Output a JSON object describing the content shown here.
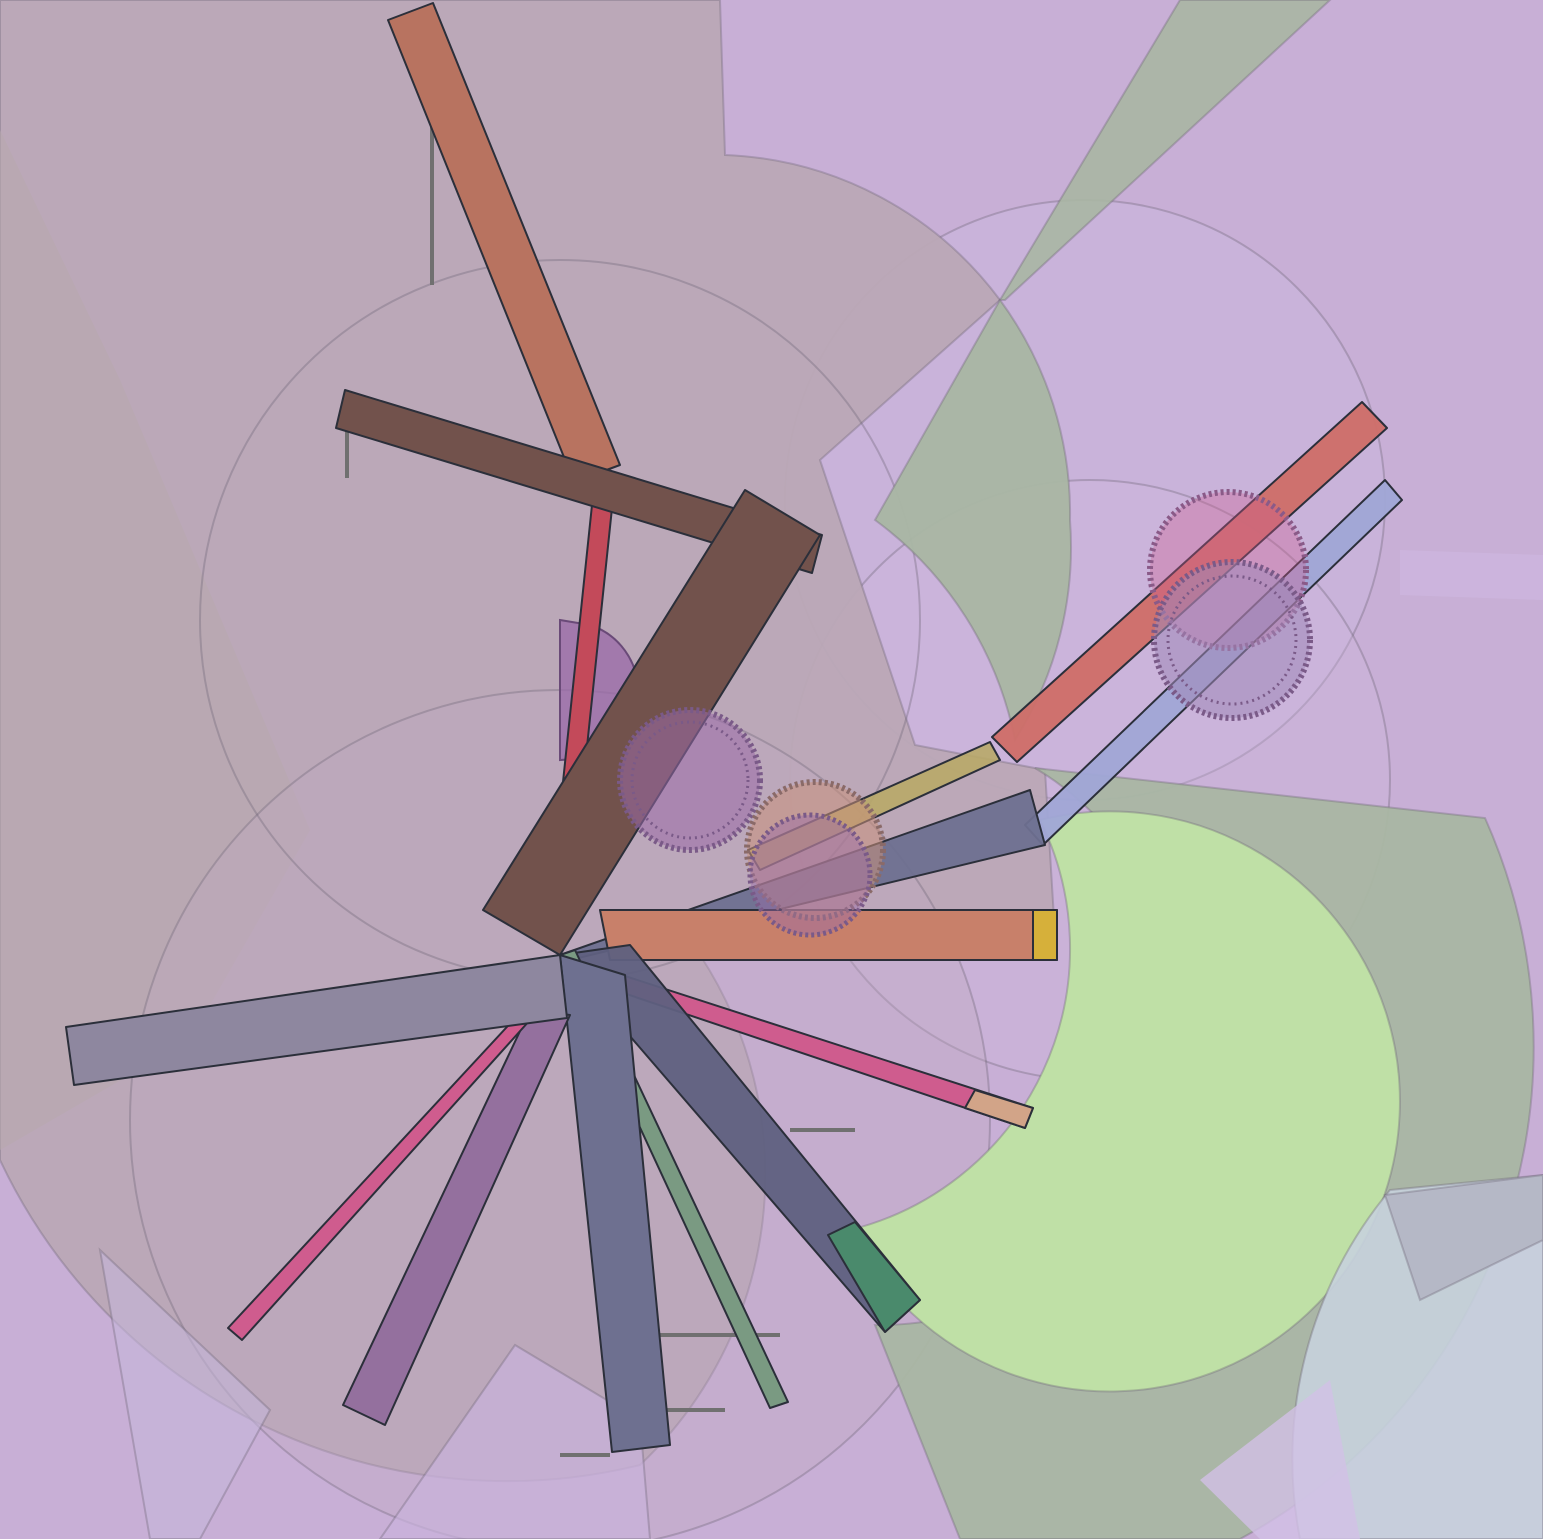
{
  "palette": {
    "background": "#c8afd6",
    "taupe": "#bba8b6",
    "sage": "#a9b6a3",
    "lime": "#bfe0a6",
    "lavender": "#c9b2dc",
    "orange": "#b87360",
    "brown": "#72524c",
    "slate": "#6e7090",
    "grey_purple": "#8e879f",
    "pink": "#cf5c8e",
    "violet": "#94709e",
    "green": "#4a8a6c",
    "coral": "#cf6e68",
    "periwinkle": "#a0a6d6",
    "mustard": "#c9b04a",
    "red": "#c34a5a"
  }
}
